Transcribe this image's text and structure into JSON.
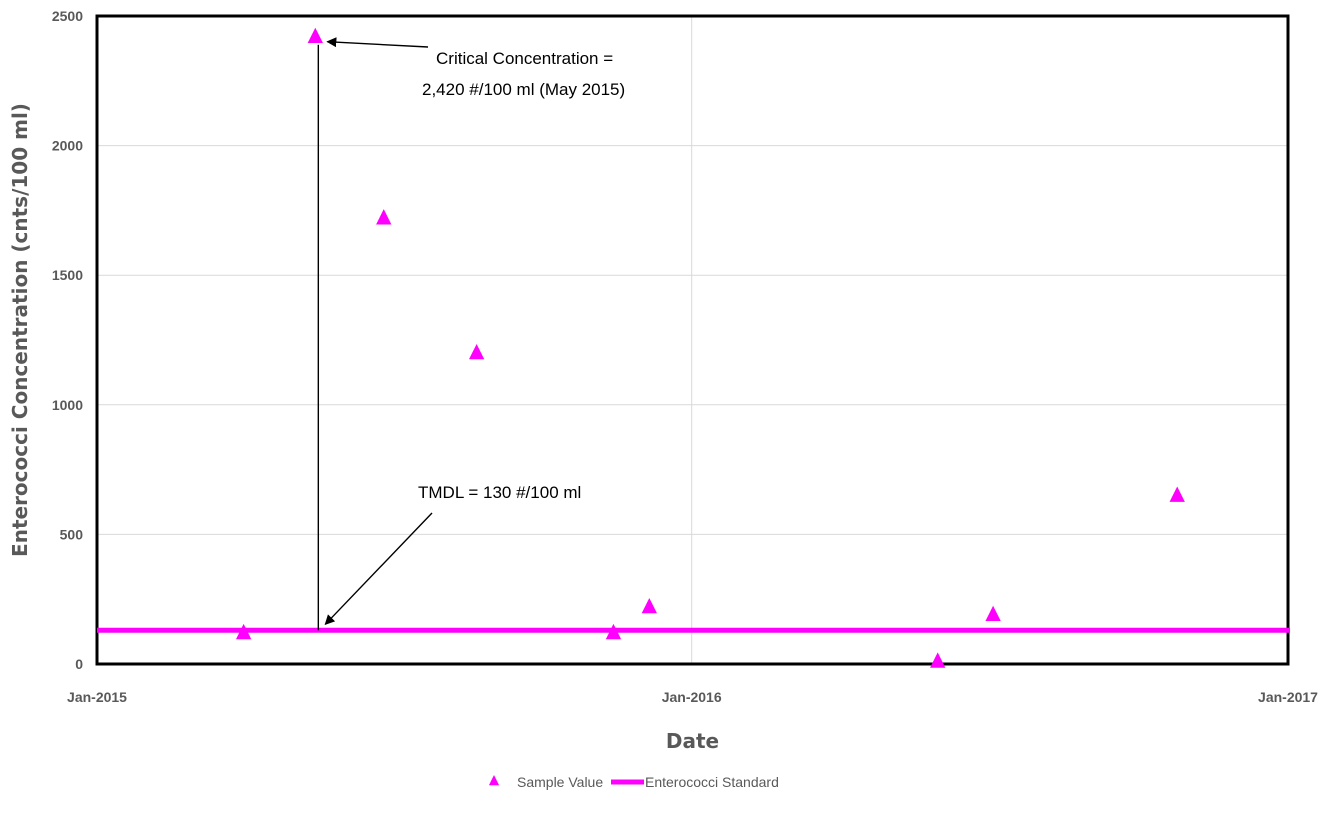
{
  "chart_data": {
    "type": "scatter",
    "title": "",
    "xlabel": "Date",
    "ylabel": "Enterococci Concentration (cnts/100 ml)",
    "xlim": [
      "2015-01-01",
      "2017-01-01"
    ],
    "ylim": [
      0,
      2500
    ],
    "x_ticks": [
      "Jan-2015",
      "Jan-2016",
      "Jan-2017"
    ],
    "y_ticks": [
      "0",
      "500",
      "1000",
      "1500",
      "2000",
      "2500"
    ],
    "grid": true,
    "legend_position": "bottom",
    "series": [
      {
        "name": "Sample Value",
        "marker": "triangle",
        "color": "#FF00FF",
        "points": [
          {
            "x": "2015-04-01",
            "y": 120
          },
          {
            "x": "2015-05-15",
            "y": 2420
          },
          {
            "x": "2015-06-26",
            "y": 1720
          },
          {
            "x": "2015-08-22",
            "y": 1200
          },
          {
            "x": "2015-11-14",
            "y": 120
          },
          {
            "x": "2015-12-06",
            "y": 220
          },
          {
            "x": "2016-05-31",
            "y": 10
          },
          {
            "x": "2016-07-04",
            "y": 190
          },
          {
            "x": "2016-10-25",
            "y": 650
          }
        ]
      },
      {
        "name": "Enterococci Standard",
        "type": "line",
        "color": "#FF00FF",
        "value": 130
      }
    ],
    "annotations": [
      {
        "line1": "Critical Concentration =",
        "line2": "2,420 #/100 ml (May 2015)"
      },
      {
        "line1": "TMDL = 130 #/100 ml"
      }
    ]
  }
}
